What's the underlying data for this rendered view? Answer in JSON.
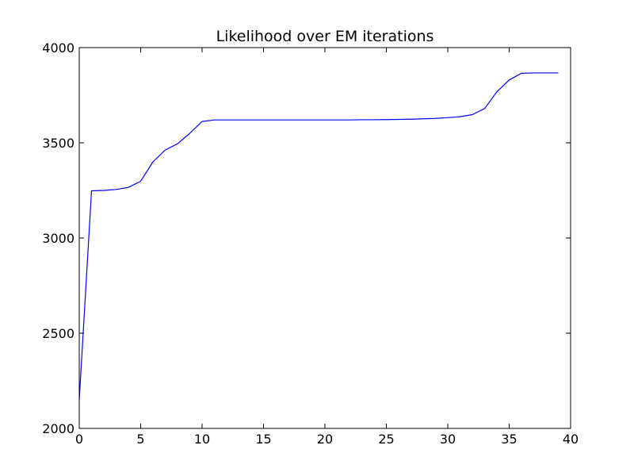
{
  "chart_data": {
    "type": "line",
    "title": "Likelihood over EM iterations",
    "xlabel": "",
    "ylabel": "",
    "xlim": [
      0,
      40
    ],
    "ylim": [
      2000,
      4000
    ],
    "x_ticks": [
      0,
      5,
      10,
      15,
      20,
      25,
      30,
      35,
      40
    ],
    "y_ticks": [
      2000,
      2500,
      3000,
      3500,
      4000
    ],
    "x_tick_labels": [
      "0",
      "5",
      "10",
      "15",
      "20",
      "25",
      "30",
      "35",
      "40"
    ],
    "y_tick_labels": [
      "2000",
      "2500",
      "3000",
      "3500",
      "4000"
    ],
    "grid": false,
    "legend": "none",
    "series": [
      {
        "color": "#0000ff",
        "x": [
          0,
          1,
          2,
          3,
          4,
          5,
          6,
          7,
          8,
          9,
          10,
          11,
          12,
          13,
          14,
          15,
          16,
          17,
          18,
          19,
          20,
          21,
          22,
          23,
          24,
          25,
          26,
          27,
          28,
          29,
          30,
          31,
          32,
          33,
          34,
          35,
          36,
          37,
          38,
          39
        ],
        "y": [
          2150,
          3248,
          3250,
          3255,
          3266,
          3298,
          3400,
          3462,
          3495,
          3550,
          3612,
          3620,
          3620,
          3620,
          3620,
          3620,
          3620,
          3620,
          3620,
          3620,
          3620,
          3620,
          3620,
          3621,
          3621,
          3622,
          3623,
          3624,
          3626,
          3628,
          3632,
          3637,
          3648,
          3680,
          3768,
          3830,
          3865,
          3867,
          3867,
          3867
        ]
      }
    ]
  }
}
